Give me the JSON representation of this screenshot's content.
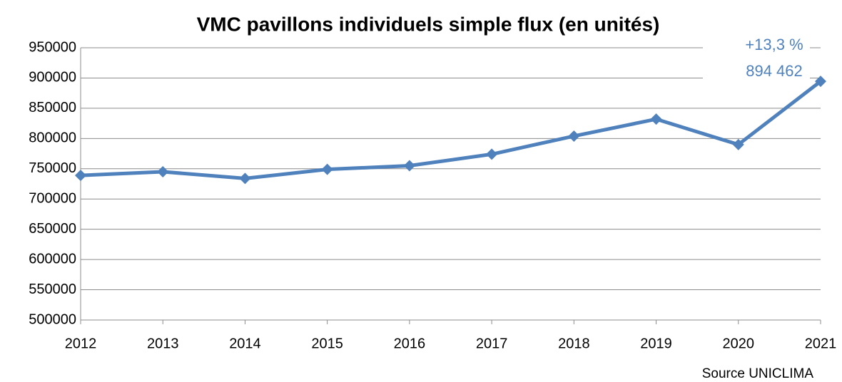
{
  "chart_data": {
    "type": "line",
    "title": "VMC pavillons individuels simple flux (en unités)",
    "categories": [
      "2012",
      "2013",
      "2014",
      "2015",
      "2016",
      "2017",
      "2018",
      "2019",
      "2020",
      "2021"
    ],
    "values": [
      739000,
      745000,
      734000,
      749000,
      755000,
      774000,
      804000,
      832000,
      790000,
      894462
    ],
    "color": "#4f81bd",
    "ylim": [
      500000,
      950000
    ],
    "yticks": [
      500000,
      550000,
      600000,
      650000,
      700000,
      750000,
      800000,
      850000,
      900000,
      950000
    ],
    "grid": true,
    "annotations": [
      "+13,3 %",
      "894 462"
    ],
    "annotation_color": "#4f81bd",
    "source": "Source UNICLIMA"
  }
}
